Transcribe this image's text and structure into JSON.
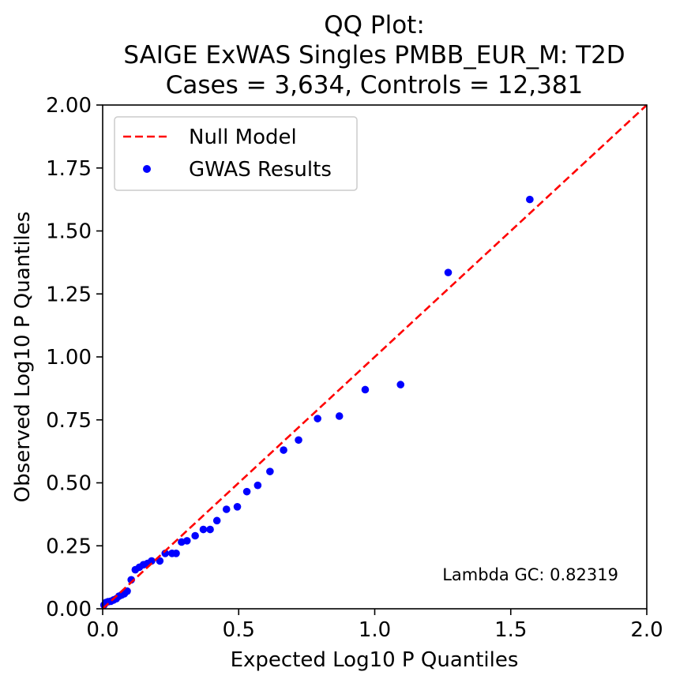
{
  "chart_data": {
    "type": "scatter",
    "title_lines": [
      "QQ Plot:",
      "SAIGE ExWAS Singles PMBB_EUR_M: T2D",
      "Cases = 3,634, Controls = 12,381"
    ],
    "xlabel": "Expected Log10 P Quantiles",
    "ylabel": "Observed Log10 P Quantiles",
    "xlim": [
      0,
      2
    ],
    "ylim": [
      0,
      2
    ],
    "x_ticks": [
      "0.0",
      "0.5",
      "1.0",
      "1.5",
      "2.0"
    ],
    "y_ticks": [
      "0.00",
      "0.25",
      "0.50",
      "0.75",
      "1.00",
      "1.25",
      "1.50",
      "1.75",
      "2.00"
    ],
    "legend_position": "top-left",
    "legend": {
      "null_model": "Null Model",
      "gwas_results": "GWAS Results"
    },
    "annotation": "Lambda GC: 0.82319",
    "colors": {
      "null_line": "#ff0000",
      "points": "#0000ff"
    },
    "null_model_line": {
      "x": [
        0,
        2
      ],
      "y": [
        0,
        2
      ]
    },
    "series": [
      {
        "name": "GWAS Results",
        "points": [
          [
            0.005,
            0.015
          ],
          [
            0.012,
            0.025
          ],
          [
            0.02,
            0.028
          ],
          [
            0.03,
            0.03
          ],
          [
            0.04,
            0.035
          ],
          [
            0.05,
            0.04
          ],
          [
            0.06,
            0.05
          ],
          [
            0.07,
            0.055
          ],
          [
            0.08,
            0.06
          ],
          [
            0.09,
            0.07
          ],
          [
            0.105,
            0.115
          ],
          [
            0.12,
            0.155
          ],
          [
            0.135,
            0.165
          ],
          [
            0.15,
            0.175
          ],
          [
            0.165,
            0.18
          ],
          [
            0.18,
            0.19
          ],
          [
            0.21,
            0.19
          ],
          [
            0.23,
            0.22
          ],
          [
            0.255,
            0.22
          ],
          [
            0.27,
            0.22
          ],
          [
            0.29,
            0.265
          ],
          [
            0.31,
            0.27
          ],
          [
            0.34,
            0.29
          ],
          [
            0.37,
            0.315
          ],
          [
            0.395,
            0.315
          ],
          [
            0.42,
            0.35
          ],
          [
            0.455,
            0.395
          ],
          [
            0.495,
            0.405
          ],
          [
            0.53,
            0.465
          ],
          [
            0.57,
            0.49
          ],
          [
            0.615,
            0.545
          ],
          [
            0.665,
            0.63
          ],
          [
            0.72,
            0.67
          ],
          [
            0.79,
            0.755
          ],
          [
            0.87,
            0.765
          ],
          [
            0.965,
            0.87
          ],
          [
            1.095,
            0.89
          ],
          [
            1.27,
            1.335
          ],
          [
            1.57,
            1.625
          ]
        ]
      }
    ]
  }
}
